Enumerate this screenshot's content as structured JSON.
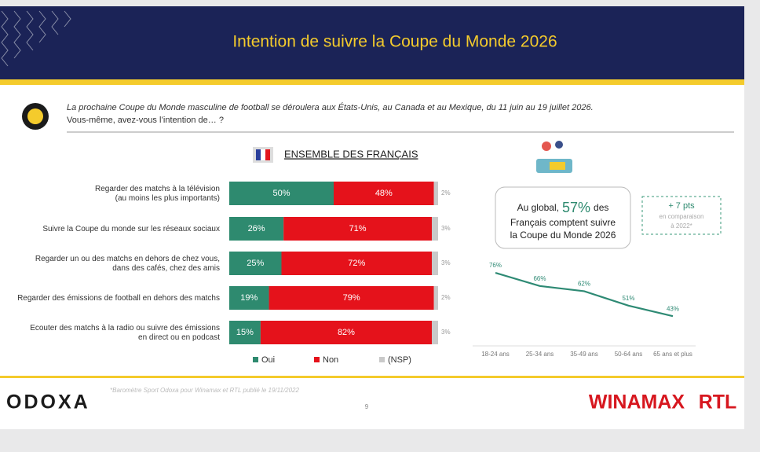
{
  "header": {
    "title": "Intention de suivre la Coupe du Monde 2026"
  },
  "question": {
    "lines": [
      "La prochaine Coupe du Monde masculine de football se déroulera aux États-Unis, au Canada et au Mexique, du 11 juin au 19 juillet 2026.",
      "Vous-même, avez-vous l’intention de… ?"
    ]
  },
  "chart_data": [
    {
      "type": "bar",
      "orientation": "horizontal",
      "stacked": true,
      "title": "ENSEMBLE DES FRANÇAIS",
      "categories": [
        "Regarder des matchs à la télévision\n(au moins les plus importants)",
        "Suivre la Coupe du monde sur les réseaux sociaux",
        "Regarder un ou des matchs en dehors de chez vous,\ndans des cafés, chez des amis",
        "Regarder des émissions de football en dehors des matchs",
        "Ecouter des matchs à la radio ou suivre des émissions\nen direct ou en podcast"
      ],
      "series": [
        {
          "name": "Oui",
          "color": "#2e8a6f",
          "values": [
            50,
            26,
            25,
            19,
            15
          ],
          "value_labels": [
            "50%",
            "26%",
            "25%",
            "19%",
            "15%"
          ]
        },
        {
          "name": "Non",
          "color": "#e5121b",
          "values": [
            48,
            71,
            72,
            79,
            82
          ],
          "value_labels": [
            "48%",
            "71%",
            "72%",
            "79%",
            "82%"
          ]
        },
        {
          "name": "(NSP)",
          "color": "#c9c9c9",
          "values": [
            2,
            3,
            3,
            2,
            3
          ],
          "value_labels": [
            "2%",
            "3%",
            "3%",
            "2%",
            "3%"
          ]
        }
      ],
      "xlim": [
        0,
        100
      ],
      "legend": "bottom"
    },
    {
      "type": "line",
      "categories": [
        "18-24 ans",
        "25-34 ans",
        "35-49 ans",
        "50-64 ans",
        "65 ans et plus"
      ],
      "series": [
        {
          "color": "#2e8a74",
          "values": [
            76,
            66,
            62,
            51,
            43
          ],
          "value_labels": [
            "76%",
            "66%",
            "62%",
            "51%",
            "43%"
          ]
        }
      ],
      "callout": {
        "prefix": "Au global,",
        "highlight": "57%",
        "suffix": "des",
        "line2": "Français comptent suivre",
        "line3": "la Coupe du Monde 2026"
      },
      "comparison": {
        "delta": "+ 7 pts",
        "line2": "en comparaison",
        "line3": "à 2022*"
      }
    }
  ],
  "footer": {
    "brand": "ODOXA",
    "source": "*Baromètre Sport Odoxa pour Winamax et RTL publié le 19/11/2022",
    "page": "9",
    "partners": [
      "WINAMAX",
      "RTL"
    ]
  }
}
